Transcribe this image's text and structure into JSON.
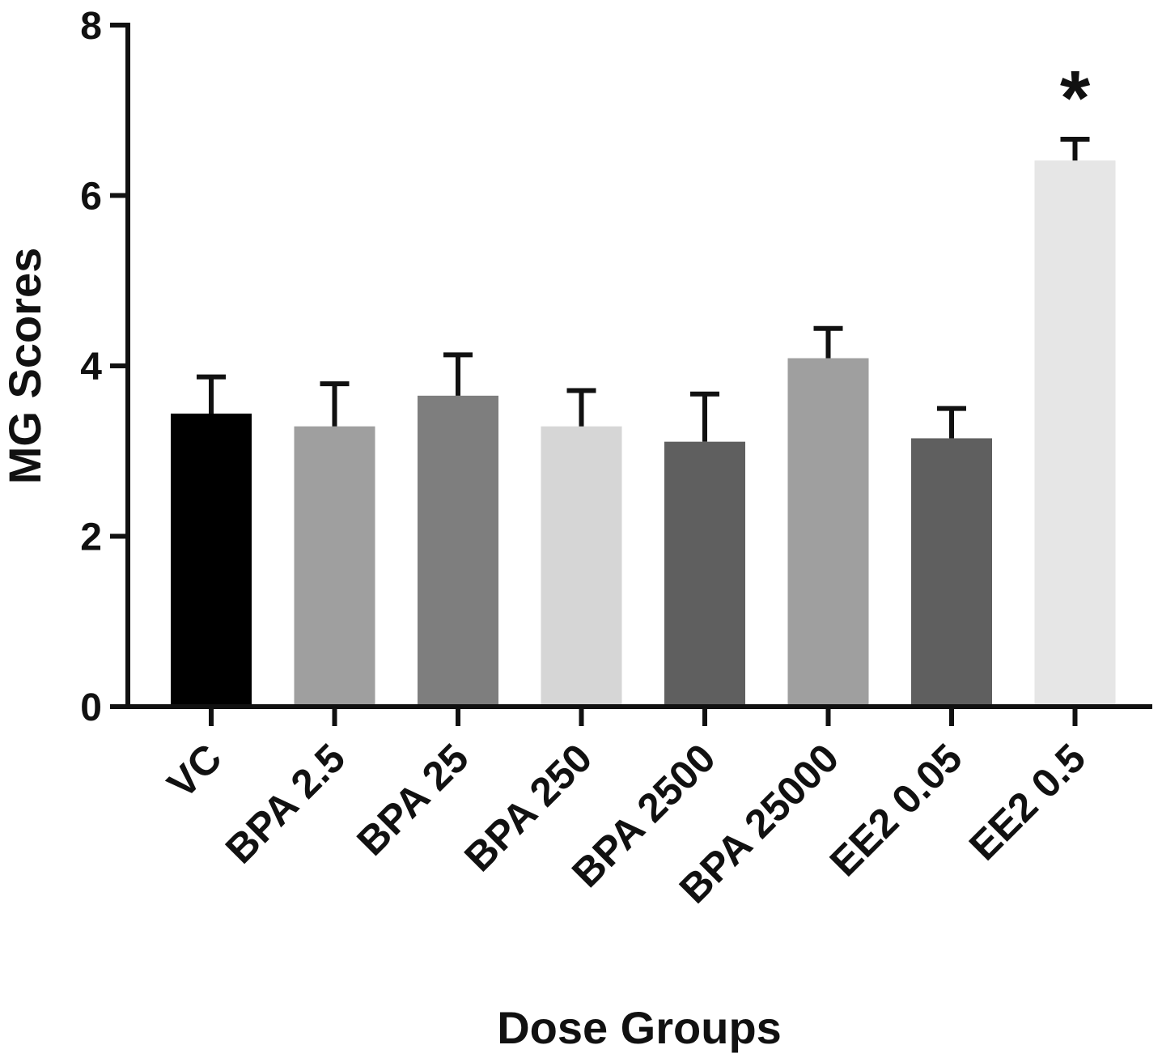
{
  "chart_data": {
    "type": "bar",
    "xlabel": "Dose Groups",
    "ylabel": "MG Scores",
    "ylim": [
      0,
      8
    ],
    "yticks": [
      "0",
      "2",
      "4",
      "6",
      "8"
    ],
    "grid": false,
    "categories": [
      "VC",
      "BPA 2.5",
      "BPA 25",
      "BPA 250",
      "BPA 2500",
      "BPA 25000",
      "EE2 0.05",
      "EE2 0.5"
    ],
    "values": [
      3.44,
      3.29,
      3.65,
      3.29,
      3.11,
      4.09,
      3.15,
      6.41
    ],
    "errors": [
      0.43,
      0.5,
      0.48,
      0.42,
      0.56,
      0.35,
      0.35,
      0.25
    ],
    "bar_colors": [
      "#000000",
      "#9f9f9f",
      "#7e7e7e",
      "#d6d6d6",
      "#5f5f5f",
      "#9f9f9f",
      "#5f5f5f",
      "#e6e6e6"
    ],
    "annotations": [
      {
        "category": "EE2 0.5",
        "text": "*"
      }
    ]
  }
}
